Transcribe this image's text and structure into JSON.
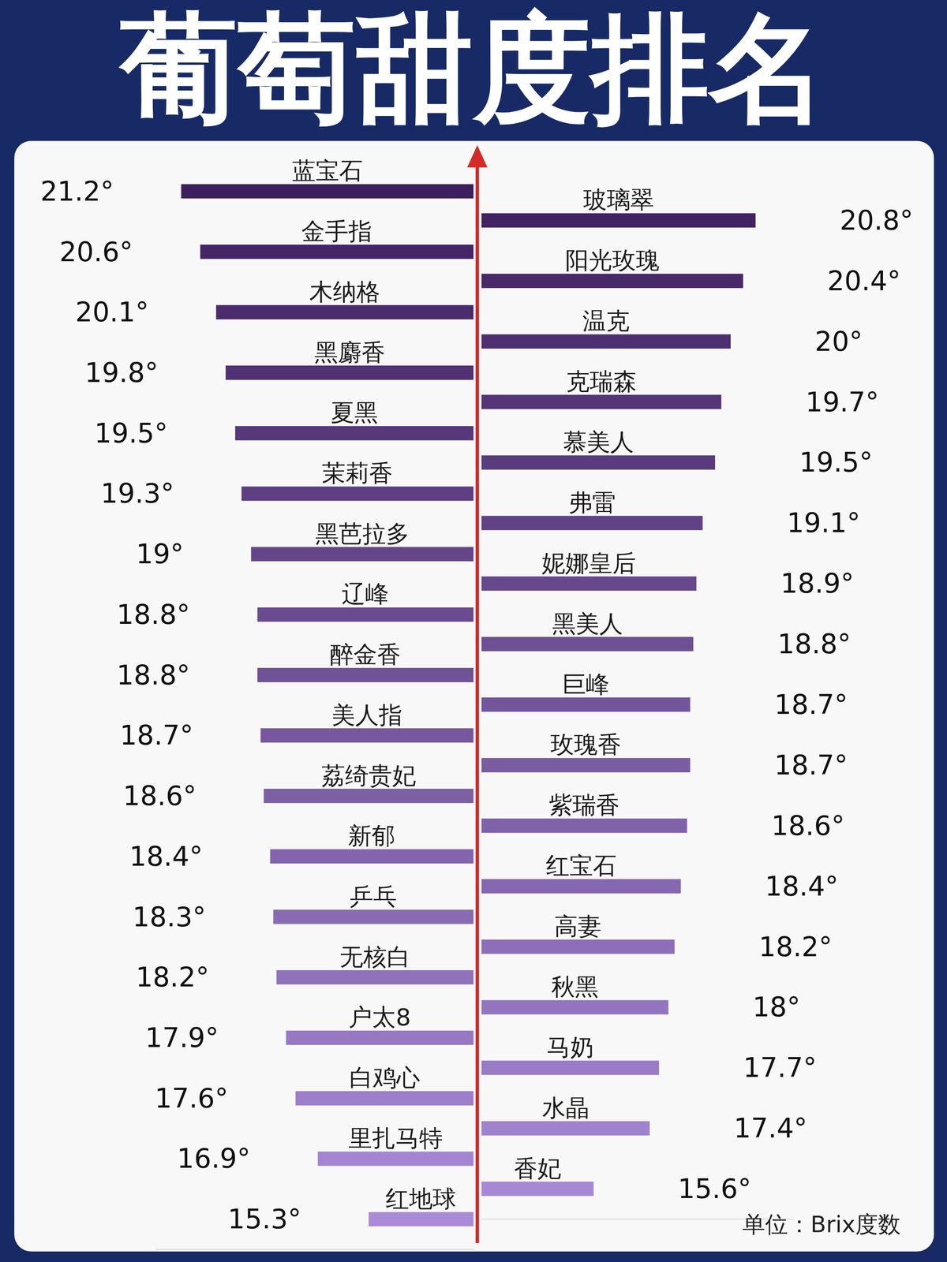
{
  "chart_data": [
    {
      "type": "bar",
      "title": "葡萄甜度排名",
      "orientation": "horizontal",
      "categories": [
        "蓝宝石",
        "金手指",
        "木纳格",
        "黑麝香",
        "夏黑",
        "茉莉香",
        "黑芭拉多",
        "辽峰",
        "醉金香",
        "美人指",
        "荔绮贵妃",
        "新郁",
        "乒乓",
        "无核白",
        "户太8",
        "白鸡心",
        "里扎马特",
        "红地球"
      ],
      "values": [
        21.2,
        20.6,
        20.1,
        19.8,
        19.5,
        19.3,
        19,
        18.8,
        18.8,
        18.7,
        18.6,
        18.4,
        18.3,
        18.2,
        17.9,
        17.6,
        16.9,
        15.3
      ],
      "value_labels": [
        "21.2°",
        "20.6°",
        "20.1°",
        "19.8°",
        "19.5°",
        "19.3°",
        "19°",
        "18.8°",
        "18.8°",
        "18.7°",
        "18.6°",
        "18.4°",
        "18.3°",
        "18.2°",
        "17.9°",
        "17.6°",
        "16.9°",
        "15.3°"
      ],
      "colors": [
        "#3e1f5e",
        "#442565",
        "#4b2c6c",
        "#513274",
        "#57387b",
        "#5d3f82",
        "#644589",
        "#6a4b90",
        "#705297",
        "#77589f",
        "#7d5fa6",
        "#8365ad",
        "#896bb4",
        "#9072bb",
        "#9678c3",
        "#9c7eca",
        "#a385d1",
        "#a98bd8"
      ],
      "xlim": [
        12,
        22
      ],
      "data_labels": true,
      "tick_labels": false,
      "grid": false
    },
    {
      "type": "bar",
      "orientation": "horizontal",
      "categories": [
        "玻璃翠",
        "阳光玫瑰",
        "温克",
        "克瑞森",
        "慕美人",
        "弗雷",
        "妮娜皇后",
        "黑美人",
        "巨峰",
        "玫瑰香",
        "紫瑞香",
        "红宝石",
        "高妻",
        "秋黑",
        "马奶",
        "水晶",
        "香妃"
      ],
      "values": [
        20.8,
        20.4,
        20,
        19.7,
        19.5,
        19.1,
        18.9,
        18.8,
        18.7,
        18.7,
        18.6,
        18.4,
        18.2,
        18,
        17.7,
        17.4,
        15.6
      ],
      "value_labels": [
        "20.8°",
        "20.4°",
        "20°",
        "19.7°",
        "19.5°",
        "19.1°",
        "18.9°",
        "18.8°",
        "18.7°",
        "18.7°",
        "18.6°",
        "18.4°",
        "18.2°",
        "18°",
        "17.7°",
        "17.4°",
        "15.6°"
      ],
      "colors": [
        "#412262",
        "#482969",
        "#4e2f70",
        "#543577",
        "#5a3c7e",
        "#614286",
        "#67488d",
        "#6d4f94",
        "#73559b",
        "#7a5ca2",
        "#8062a9",
        "#8668b0",
        "#8c6fb8",
        "#9375bf",
        "#997bc6",
        "#a082cd",
        "#a688d4"
      ],
      "xlim": [
        12,
        22
      ],
      "data_labels": true,
      "tick_labels": false,
      "grid": false,
      "annotations": [
        "单位：Brix度数"
      ]
    }
  ]
}
